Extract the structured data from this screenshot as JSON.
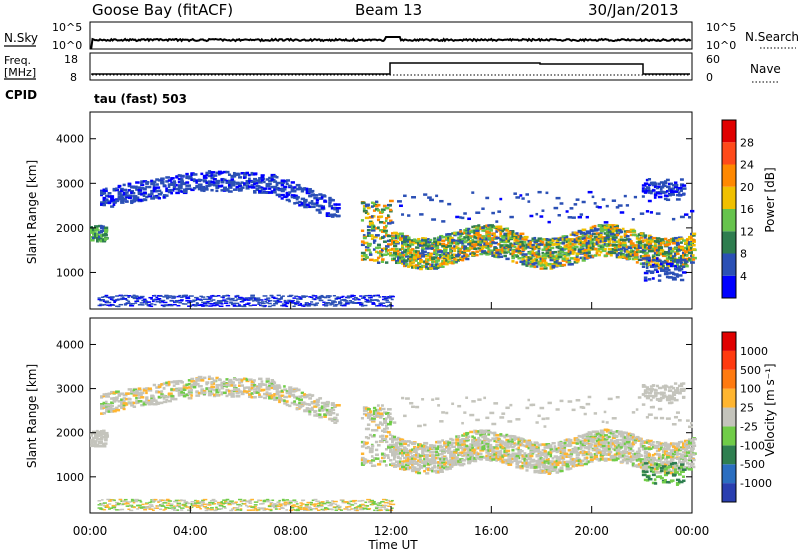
{
  "header": {
    "station": "Goose Bay (fitACF)",
    "beam": "Beam 13",
    "date": "30/Jan/2013"
  },
  "labels": {
    "nsky": "N.Sky",
    "nsearch": "N.Search",
    "freq_line1": "Freq.",
    "freq_line2": "[MHz]",
    "cpid": "CPID",
    "nave": "Nave",
    "cpid_value": "tau (fast) 503"
  },
  "noise_panel": {
    "left_ticks": [
      "10^5",
      "10^0"
    ],
    "right_ticks": [
      "10^5",
      "10^0"
    ]
  },
  "freq_panel": {
    "left_ticks": [
      "18",
      "8"
    ],
    "right_ticks": [
      "60",
      "0"
    ]
  },
  "chart_data": [
    {
      "type": "heatmap",
      "name": "power-panel",
      "ylabel": "Slant Range [km]",
      "ylim": [
        180,
        4600
      ],
      "yticks": [
        "4000",
        "3000",
        "2000",
        "1000"
      ],
      "ytick_values": [
        4000,
        3000,
        2000,
        1000
      ],
      "xlim_hours": [
        0,
        24
      ],
      "colorbar": {
        "label": "Power [dB]",
        "ticks": [
          "28",
          "24",
          "20",
          "16",
          "12",
          "8",
          "4"
        ],
        "colors": [
          "#0000ff",
          "#2b50b5",
          "#2e7d4f",
          "#66c34c",
          "#f0c000",
          "#ff8800",
          "#ff4a1a",
          "#e00000"
        ]
      }
    },
    {
      "type": "heatmap",
      "name": "velocity-panel",
      "ylabel": "Slant Range [km]",
      "ylim": [
        180,
        4600
      ],
      "yticks": [
        "4000",
        "3000",
        "2000",
        "1000"
      ],
      "ytick_values": [
        4000,
        3000,
        2000,
        1000
      ],
      "xlim_hours": [
        0,
        24
      ],
      "colorbar": {
        "label": "Velocity [m s⁻¹]",
        "ticks": [
          "1000",
          "500",
          "100",
          "25",
          "-25",
          "-100",
          "-500",
          "-1000"
        ],
        "colors": [
          "#2a3fb0",
          "#2b6ec0",
          "#2f7f50",
          "#70cc48",
          "#c4c4bc",
          "#ffb530",
          "#ff7a10",
          "#ff3a10",
          "#e00000"
        ]
      }
    }
  ],
  "time_axis": {
    "label": "Time UT",
    "ticks": [
      "00:00",
      "04:00",
      "08:00",
      "12:00",
      "16:00",
      "20:00",
      "00:00"
    ],
    "tick_hours": [
      0,
      4,
      8,
      12,
      16,
      20,
      24
    ]
  }
}
